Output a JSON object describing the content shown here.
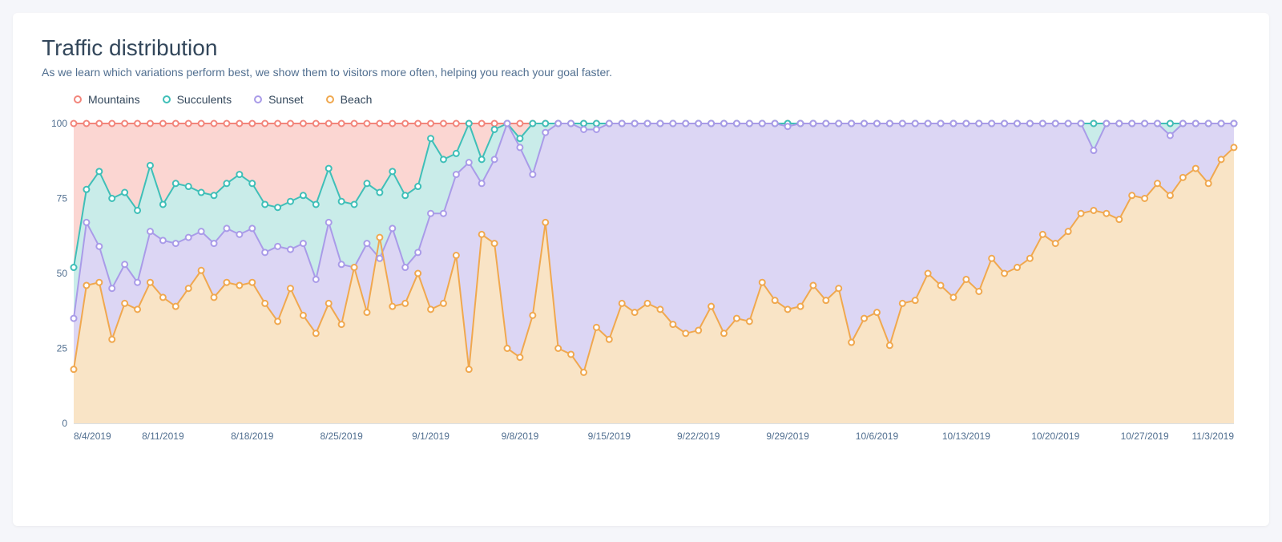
{
  "title": "Traffic distribution",
  "subtitle": "As we learn which variations perform best, we show them to visitors more often, helping you reach your goal faster.",
  "chart": {
    "type": "stacked-area",
    "background_color": "#ffffff",
    "grid_color": "#e0e5eb",
    "axis_text_color": "#516f90",
    "axis_fontsize": 12,
    "ylim": [
      0,
      100
    ],
    "yticks": [
      0,
      25,
      50,
      75,
      100
    ],
    "xticks": [
      "8/4/2019",
      "8/11/2019",
      "8/18/2019",
      "8/25/2019",
      "9/1/2019",
      "9/8/2019",
      "9/15/2019",
      "9/22/2019",
      "9/29/2019",
      "10/6/2019",
      "10/13/2019",
      "10/20/2019",
      "10/27/2019",
      "11/3/2019"
    ],
    "marker": {
      "shape": "circle",
      "radius": 3.5,
      "stroke_width": 2,
      "fill": "#ffffff"
    },
    "line_width": 2,
    "fill_opacity": 0.35,
    "series": [
      {
        "name": "Mountains",
        "label": "Mountains",
        "color": "#f2857b",
        "fill": "#fbd6d2",
        "cum": [
          100,
          100,
          100,
          100,
          100,
          100,
          100,
          100,
          100,
          100,
          100,
          100,
          100,
          100,
          100,
          100,
          100,
          100,
          100,
          100,
          100,
          100,
          100,
          100,
          100,
          100,
          100,
          100,
          100,
          100,
          100,
          100,
          100,
          100,
          100,
          100,
          100,
          100,
          100,
          100,
          100,
          100,
          100,
          100,
          100,
          100,
          100,
          100,
          100,
          100,
          100,
          100,
          100,
          100,
          100,
          100,
          100,
          100,
          100,
          100,
          100,
          100,
          100,
          100,
          100,
          100,
          100,
          100,
          100,
          100,
          100,
          100,
          100,
          100,
          100,
          100,
          100,
          100,
          100,
          100,
          100,
          100,
          100,
          100,
          100,
          100,
          100,
          100,
          100,
          100,
          100,
          100
        ]
      },
      {
        "name": "Succulents",
        "label": "Succulents",
        "color": "#3fbfb8",
        "fill": "#c9ece9",
        "cum": [
          52,
          78,
          84,
          75,
          77,
          71,
          86,
          73,
          80,
          79,
          77,
          76,
          80,
          83,
          80,
          73,
          72,
          74,
          76,
          73,
          85,
          74,
          73,
          80,
          77,
          84,
          76,
          79,
          95,
          88,
          90,
          100,
          88,
          98,
          100,
          95,
          100,
          100,
          100,
          100,
          100,
          100,
          100,
          100,
          100,
          100,
          100,
          100,
          100,
          100,
          100,
          100,
          100,
          100,
          100,
          100,
          100,
          100,
          100,
          100,
          100,
          100,
          100,
          100,
          100,
          100,
          100,
          100,
          100,
          100,
          100,
          100,
          100,
          100,
          100,
          100,
          100,
          100,
          100,
          100,
          100,
          100,
          100,
          100,
          100,
          100,
          100,
          100,
          100,
          100,
          100,
          100
        ]
      },
      {
        "name": "Sunset",
        "label": "Sunset",
        "color": "#a99be8",
        "fill": "#dcd6f4",
        "cum": [
          35,
          67,
          59,
          45,
          53,
          47,
          64,
          61,
          60,
          62,
          64,
          60,
          65,
          63,
          65,
          57,
          59,
          58,
          60,
          48,
          67,
          53,
          52,
          60,
          55,
          65,
          52,
          57,
          70,
          70,
          83,
          87,
          80,
          88,
          100,
          92,
          83,
          97,
          100,
          100,
          98,
          98,
          100,
          100,
          100,
          100,
          100,
          100,
          100,
          100,
          100,
          100,
          100,
          100,
          100,
          100,
          99,
          100,
          100,
          100,
          100,
          100,
          100,
          100,
          100,
          100,
          100,
          100,
          100,
          100,
          100,
          100,
          100,
          100,
          100,
          100,
          100,
          100,
          100,
          100,
          91,
          100,
          100,
          100,
          100,
          100,
          96,
          100,
          100,
          100,
          100,
          100
        ]
      },
      {
        "name": "Beach",
        "label": "Beach",
        "color": "#f0a84f",
        "fill": "#f9e4c6",
        "cum": [
          18,
          46,
          47,
          28,
          40,
          38,
          47,
          42,
          39,
          45,
          51,
          42,
          47,
          46,
          47,
          40,
          34,
          45,
          36,
          30,
          40,
          33,
          52,
          37,
          62,
          39,
          40,
          50,
          38,
          40,
          56,
          18,
          63,
          60,
          25,
          22,
          36,
          67,
          25,
          23,
          17,
          32,
          28,
          40,
          37,
          40,
          38,
          33,
          30,
          31,
          39,
          30,
          35,
          34,
          47,
          41,
          38,
          39,
          46,
          41,
          45,
          27,
          35,
          37,
          26,
          40,
          41,
          50,
          46,
          42,
          48,
          44,
          55,
          50,
          52,
          55,
          63,
          60,
          64,
          70,
          71,
          70,
          68,
          76,
          75,
          80,
          76,
          82,
          85,
          80,
          88,
          92
        ]
      }
    ]
  },
  "legend": {
    "items": [
      {
        "key": "Mountains",
        "label": "Mountains",
        "color": "#f2857b"
      },
      {
        "key": "Succulents",
        "label": "Succulents",
        "color": "#3fbfb8"
      },
      {
        "key": "Sunset",
        "label": "Sunset",
        "color": "#a99be8"
      },
      {
        "key": "Beach",
        "label": "Beach",
        "color": "#f0a84f"
      }
    ]
  }
}
